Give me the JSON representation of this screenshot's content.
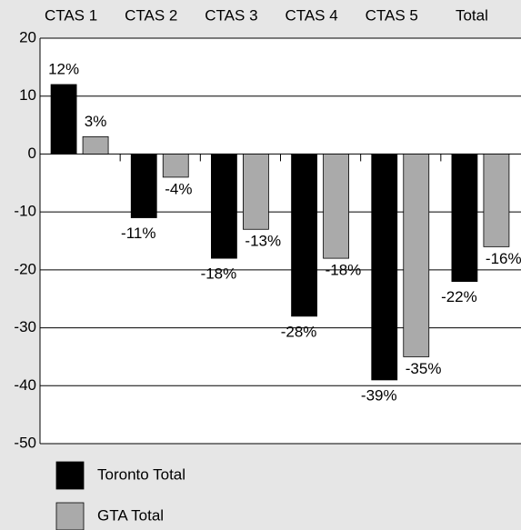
{
  "chart_data": {
    "type": "bar",
    "categories": [
      "CTAS 1",
      "CTAS 2",
      "CTAS 3",
      "CTAS 4",
      "CTAS 5",
      "Total"
    ],
    "series": [
      {
        "name": "Toronto Total",
        "color": "#000000",
        "values": [
          12,
          -11,
          -18,
          -28,
          -39,
          -22
        ],
        "value_labels": [
          "12%",
          "-11%",
          "-18%",
          "-28%",
          "-39%",
          "-22%"
        ]
      },
      {
        "name": "GTA Total",
        "color": "#aaaaaa",
        "values": [
          3,
          -4,
          -13,
          -18,
          -35,
          -16
        ],
        "value_labels": [
          "3%",
          "-4%",
          "-13%",
          "-18%",
          "-35%",
          "-16%"
        ]
      }
    ],
    "ylim": [
      -50,
      20
    ],
    "yticks": [
      20,
      10,
      0,
      -10,
      -20,
      -30,
      -40,
      -50
    ],
    "grid": true
  }
}
